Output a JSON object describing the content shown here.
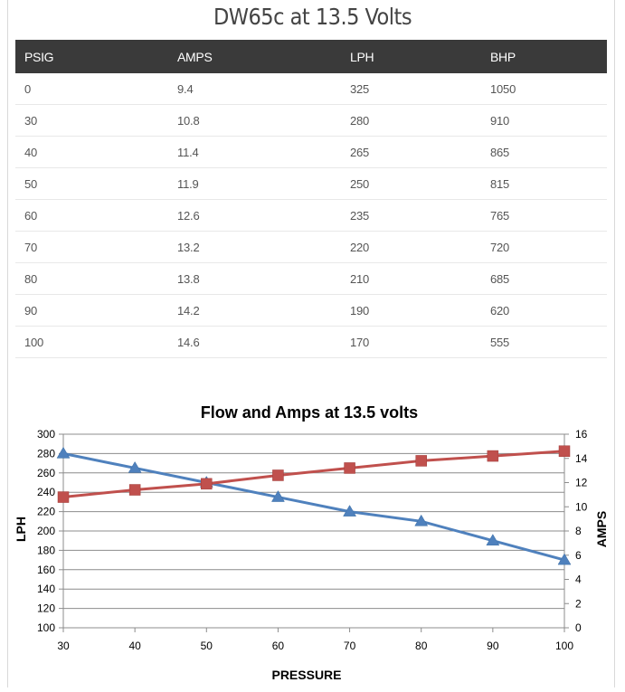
{
  "page": {
    "title": "DW65c at 13.5 Volts"
  },
  "table": {
    "headers": [
      "PSIG",
      "AMPS",
      "LPH",
      "BHP"
    ],
    "rows": [
      [
        "0",
        "9.4",
        "325",
        "1050"
      ],
      [
        "30",
        "10.8",
        "280",
        "910"
      ],
      [
        "40",
        "11.4",
        "265",
        "865"
      ],
      [
        "50",
        "11.9",
        "250",
        "815"
      ],
      [
        "60",
        "12.6",
        "235",
        "765"
      ],
      [
        "70",
        "13.2",
        "220",
        "720"
      ],
      [
        "80",
        "13.8",
        "210",
        "685"
      ],
      [
        "90",
        "14.2",
        "190",
        "620"
      ],
      [
        "100",
        "14.6",
        "170",
        "555"
      ]
    ]
  },
  "chart_data": {
    "type": "line",
    "title": "Flow and Amps at 13.5 volts",
    "xlabel": "PRESSURE",
    "ylabel": "LPH",
    "y2label": "AMPS",
    "x": [
      30,
      40,
      50,
      60,
      70,
      80,
      90,
      100
    ],
    "xlim": [
      30,
      100
    ],
    "ylim": [
      100,
      300
    ],
    "y2lim": [
      0,
      16
    ],
    "xticks": [
      "30",
      "40",
      "50",
      "60",
      "70",
      "80",
      "90",
      "100"
    ],
    "yticks": [
      "100",
      "120",
      "140",
      "160",
      "180",
      "200",
      "220",
      "240",
      "260",
      "280",
      "300"
    ],
    "y2ticks": [
      "0",
      "2",
      "4",
      "6",
      "8",
      "10",
      "12",
      "14",
      "16"
    ],
    "grid": true,
    "series": [
      {
        "axis": "left",
        "marker": "triangle",
        "color": "#4f81bd",
        "values": [
          280,
          265,
          250,
          235,
          220,
          210,
          190,
          170
        ]
      },
      {
        "axis": "right",
        "marker": "square",
        "color": "#c0504d",
        "values": [
          10.8,
          11.4,
          11.9,
          12.6,
          13.2,
          13.8,
          14.2,
          14.6
        ]
      }
    ]
  }
}
